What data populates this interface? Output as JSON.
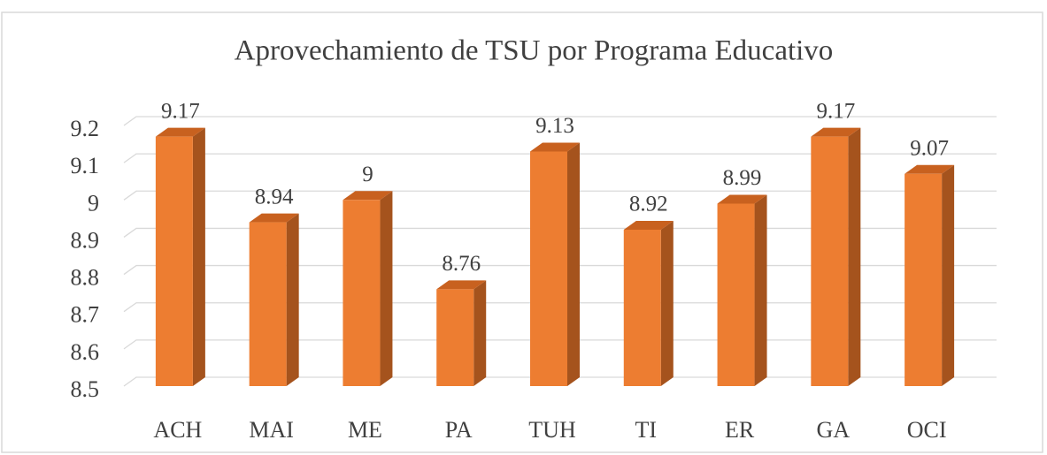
{
  "chart_data": {
    "type": "bar3d",
    "title": "Aprovechamiento de TSU por Programa Educativo",
    "categories": [
      "ACH",
      "MAI",
      "ME",
      "PA",
      "TUH",
      "TI",
      "ER",
      "GA",
      "OCI"
    ],
    "values": [
      9.17,
      8.94,
      9,
      8.76,
      9.13,
      8.92,
      8.99,
      9.17,
      9.07
    ],
    "color": "#ed7d31",
    "ylim": [
      8.5,
      9.2
    ],
    "yticks": [
      8.5,
      8.6,
      8.7,
      8.8,
      8.9,
      9,
      9.1,
      9.2
    ],
    "grid": true
  }
}
